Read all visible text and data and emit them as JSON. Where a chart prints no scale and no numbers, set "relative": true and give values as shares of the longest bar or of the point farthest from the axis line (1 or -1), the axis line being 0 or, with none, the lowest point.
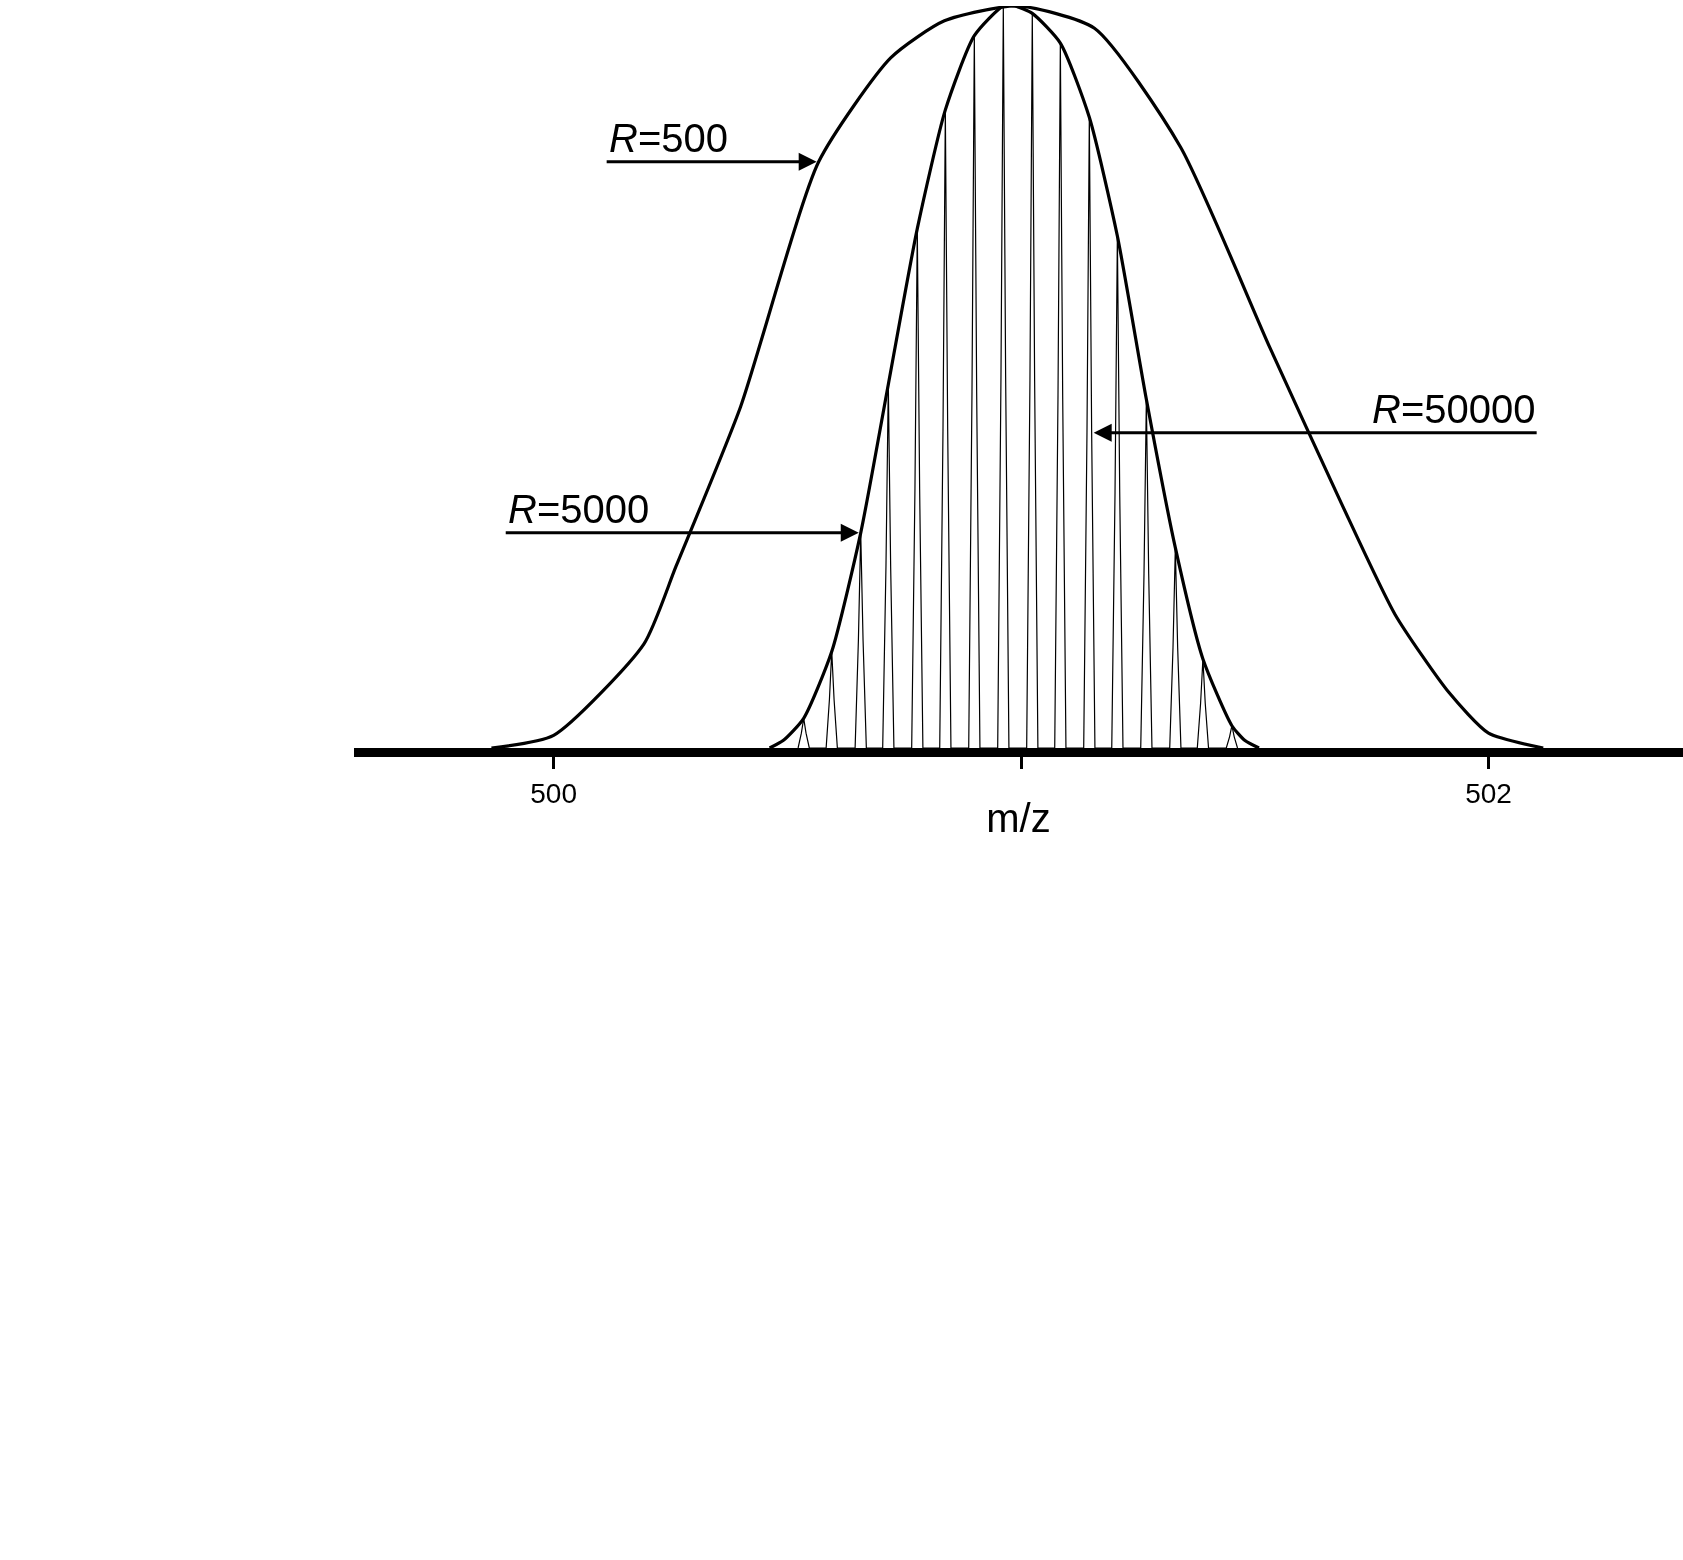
{
  "chart_data": {
    "type": "line",
    "relative": true,
    "xlabel": "m/z",
    "xlim": [
      499.573,
      502.416
    ],
    "xticks": [
      500,
      {
        "value": 501,
        "label": null
      },
      502
    ],
    "marker": "none",
    "line_style": "solid",
    "tick_labels": "x",
    "series": [
      {
        "color": "#000000",
        "x": [
          499.867,
          500.0,
          500.193,
          500.262,
          500.4,
          500.567,
          500.721,
          500.836,
          500.992,
          501.157,
          501.341,
          501.532,
          501.685,
          501.8,
          501.915,
          502.0,
          502.117
        ],
        "values": [
          0,
          0.017,
          0.14,
          0.245,
          0.46,
          0.79,
          0.93,
          0.98,
          1.0,
          0.97,
          0.81,
          0.54,
          0.33,
          0.18,
          0.075,
          0.02,
          0
        ]
      },
      {
        "color": "#000000",
        "x": [
          500.462,
          500.491,
          500.535,
          500.595,
          500.657,
          500.716,
          500.778,
          500.838,
          500.9,
          500.962,
          500.987,
          501.024,
          501.084,
          501.146,
          501.206,
          501.268,
          501.33,
          501.389,
          501.451,
          501.479,
          501.509
        ],
        "values": [
          0,
          0.01,
          0.04,
          0.13,
          0.29,
          0.49,
          0.7,
          0.86,
          0.96,
          1.0,
          1.0,
          0.99,
          0.95,
          0.85,
          0.69,
          0.47,
          0.27,
          0.12,
          0.03,
          0.01,
          0
        ]
      },
      {
        "color": "#000000",
        "x": [
          500.523,
          500.53,
          500.535,
          500.54,
          500.547,
          500.583,
          500.59,
          500.595,
          500.6,
          500.607,
          500.645,
          500.652,
          500.657,
          500.662,
          500.669,
          500.704,
          500.711,
          500.716,
          500.721,
          500.728,
          500.766,
          500.773,
          500.778,
          500.783,
          500.79,
          500.826,
          500.833,
          500.838,
          500.843,
          500.85,
          500.888,
          500.895,
          500.9,
          500.905,
          500.912,
          500.95,
          500.957,
          500.962,
          500.967,
          500.974,
          501.012,
          501.019,
          501.024,
          501.029,
          501.036,
          501.072,
          501.079,
          501.084,
          501.089,
          501.096,
          501.134,
          501.141,
          501.146,
          501.151,
          501.158,
          501.194,
          501.201,
          501.206,
          501.211,
          501.218,
          501.256,
          501.263,
          501.268,
          501.273,
          501.28,
          501.318,
          501.325,
          501.33,
          501.335,
          501.342,
          501.377,
          501.384,
          501.389,
          501.394,
          501.401,
          501.439,
          501.446,
          501.451,
          501.456,
          501.463
        ],
        "values": [
          0,
          0.02,
          0.04,
          0.02,
          0,
          0,
          0.065,
          0.13,
          0.065,
          0,
          0,
          0.145,
          0.29,
          0.145,
          0,
          0,
          0.245,
          0.49,
          0.245,
          0,
          0,
          0.35,
          0.7,
          0.35,
          0,
          0,
          0.43,
          0.86,
          0.43,
          0,
          0,
          0.48,
          0.96,
          0.48,
          0,
          0,
          0.5,
          1.0,
          0.5,
          0,
          0,
          0.495,
          0.99,
          0.495,
          0,
          0,
          0.475,
          0.95,
          0.475,
          0,
          0,
          0.425,
          0.85,
          0.425,
          0,
          0,
          0.345,
          0.69,
          0.345,
          0,
          0,
          0.235,
          0.47,
          0.235,
          0,
          0,
          0.135,
          0.27,
          0.135,
          0,
          0,
          0.06,
          0.12,
          0.06,
          0,
          0,
          0.015,
          0.03,
          0.015,
          0
        ]
      }
    ],
    "annotations": [
      {
        "text": "R=500",
        "x": 500.567,
        "y": 0.79
      },
      {
        "text": "R=50000",
        "x": 501.151,
        "y": 0.425
      },
      {
        "text": "R=5000",
        "x": 500.657,
        "y": 0.29
      }
    ]
  }
}
